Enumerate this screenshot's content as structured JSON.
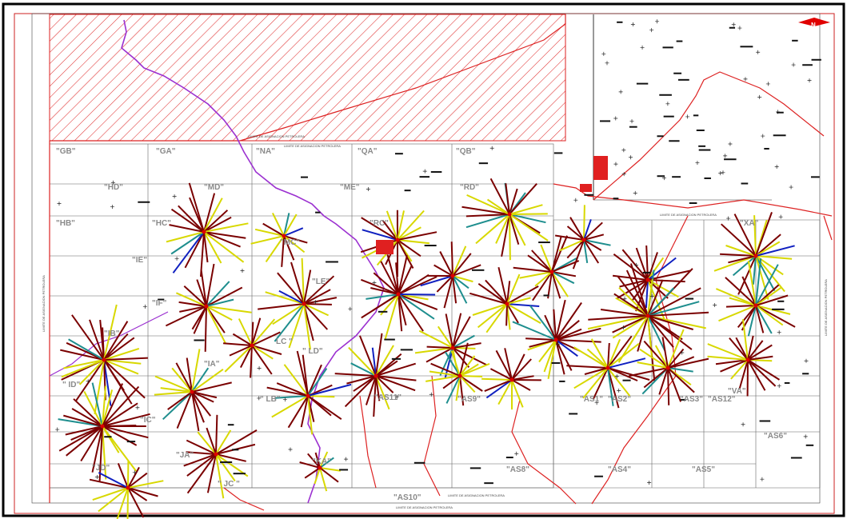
{
  "north_arrow": {
    "label": "N",
    "color": "#e00000"
  },
  "boundary_labels": {
    "top": "LIMITE DE ASIGNACION PETROLERA",
    "mid": "LIMITE DE ASIGNACION PETROLERA",
    "bottom": "LIMITE DE ASIGNACION PETROLERA",
    "bottom_inner": "LIMITE DE ASIGNACION PETROLERA",
    "left": "LIMITE DE ASIGNACION PETROLERA",
    "right": "LIMITE DE ASIGNACION PETROLERA",
    "upper_right": "LIMITE DE ASIGNACION PETROLERA"
  },
  "colors": {
    "hatch": "#e03030",
    "boundary": "#d22",
    "river": "#9b30d0",
    "flowline_main": "#7a0000",
    "flowline_alt": "#d8d800",
    "flowline_teal": "#1e8e8e",
    "flowline_blue": "#1020c0",
    "grid": "#666"
  },
  "blocks": [
    {
      "name": "\"GB\""
    },
    {
      "name": "\"GA\""
    },
    {
      "name": "\"NA\""
    },
    {
      "name": "\"QA\""
    },
    {
      "name": "\"QB\""
    },
    {
      "name": "\"HD\""
    },
    {
      "name": "\"MD\""
    },
    {
      "name": "\"ME\""
    },
    {
      "name": "\"RD\""
    },
    {
      "name": "\"HB\""
    },
    {
      "name": "\"HC\""
    },
    {
      "name": "\"MC\""
    },
    {
      "name": "\"RC\""
    },
    {
      "name": "\"IE\""
    },
    {
      "name": "\"LE\""
    },
    {
      "name": "\"IF\""
    },
    {
      "name": "\"IB\""
    },
    {
      "name": "LC \""
    },
    {
      "name": "\" LD\""
    },
    {
      "name": "\"IA\""
    },
    {
      "name": "\" ID\""
    },
    {
      "name": "\" LB\""
    },
    {
      "name": "\"AS11\""
    },
    {
      "name": "\"AS9\""
    },
    {
      "name": "\"AS1\""
    },
    {
      "name": "\"AS2\""
    },
    {
      "name": "\"AS3\""
    },
    {
      "name": "\"AS12\""
    },
    {
      "name": "\"AS6\""
    },
    {
      "name": "\"JA\""
    },
    {
      "name": "\" JC \""
    },
    {
      "name": "\"AS8\""
    },
    {
      "name": "\"AS4\""
    },
    {
      "name": "\"AS5\""
    },
    {
      "name": "\"AS10\""
    },
    {
      "name": "\"KA\""
    },
    {
      "name": "\"JD\""
    },
    {
      "name": "\"IC\""
    },
    {
      "name": "\"VA\""
    },
    {
      "name": "\"XA\""
    }
  ]
}
